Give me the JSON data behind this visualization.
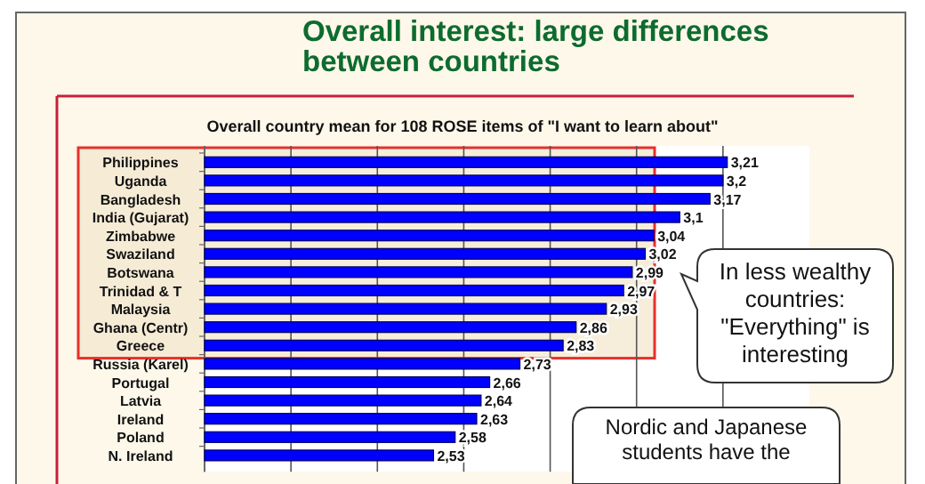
{
  "chart_data": {
    "type": "bar",
    "orientation": "horizontal",
    "title": "Overall interest: large differences\nbetween countries",
    "subtitle": "Overall country mean for 108 ROSE items of \"I want to learn about\"",
    "categories": [
      "Philippines",
      "Uganda",
      "Bangladesh",
      "India (Gujarat)",
      "Zimbabwe",
      "Swaziland",
      "Botswana",
      "Trinidad & T",
      "Malaysia",
      "Ghana (Centr)",
      "Greece",
      "Russia (Karel)",
      "Portugal",
      "Latvia",
      "Ireland",
      "Poland",
      "N. Ireland"
    ],
    "values": [
      3.21,
      3.2,
      3.17,
      3.1,
      3.04,
      3.02,
      2.99,
      2.97,
      2.93,
      2.86,
      2.83,
      2.73,
      2.66,
      2.64,
      2.63,
      2.58,
      2.53
    ],
    "value_labels": [
      "3,21",
      "3,2",
      "3,17",
      "3,1",
      "3,04",
      "3,02",
      "2,99",
      "2,97",
      "2,93",
      "2,86",
      "2,83",
      "2,73",
      "2,66",
      "2,64",
      "2,63",
      "2,58",
      "2,53"
    ],
    "color": "#0000ff",
    "xlim": [
      2,
      3.4
    ],
    "xticks": [
      {
        "value": 2,
        "label": null
      },
      {
        "value": 2.2,
        "label": null
      },
      {
        "value": 2.4,
        "label": null
      },
      {
        "value": 2.6,
        "label": null
      },
      {
        "value": 2.8,
        "label": null
      },
      {
        "value": 3,
        "label": null
      },
      {
        "value": 3.2,
        "label": null
      }
    ],
    "tick_labels": "y",
    "grid": "x",
    "annotations": [
      "In less wealthy countries: \"Everything\" is interesting",
      "Nordic and Japanese students have the"
    ]
  }
}
